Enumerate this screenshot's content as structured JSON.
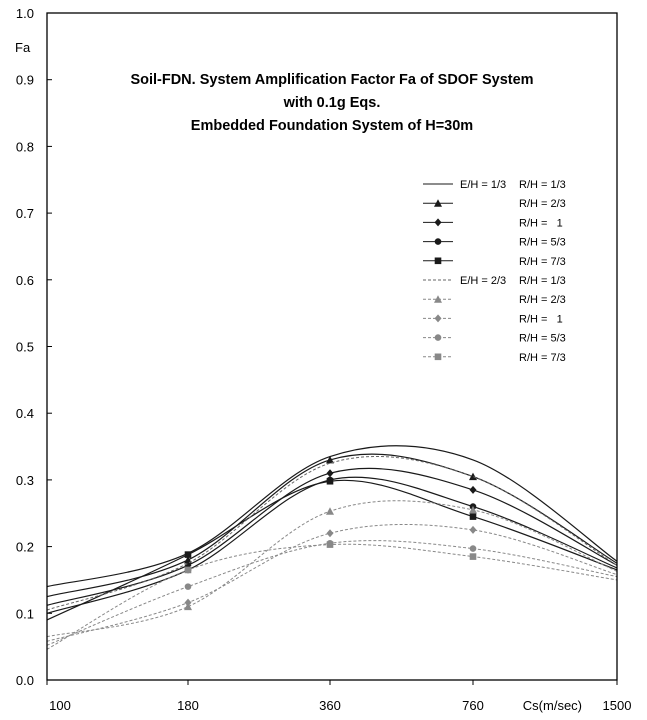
{
  "chart_data": {
    "type": "line",
    "title": [
      "Soil-FDN. System Amplification Factor Fa of SDOF System",
      "with 0.1g Eqs.",
      "Embedded Foundation System of H=30m"
    ],
    "xlabel": "Cs(m/sec)",
    "ylabel": "Fa",
    "categories": [
      "100",
      "180",
      "360",
      "760",
      "1500"
    ],
    "ylim": [
      0,
      1.0
    ],
    "yticks": [
      "0.0",
      "0.1",
      "0.2",
      "0.3",
      "0.4",
      "0.5",
      "0.6",
      "0.7",
      "0.8",
      "0.9",
      "1.0"
    ],
    "grid": false,
    "legend_position": "right",
    "series": [
      {
        "name": "E/H = 1/3  R/H = 1/3",
        "group": "E/H = 1/3",
        "sub": "R/H = 1/3",
        "color": "#1a1a1a",
        "dashed": false,
        "marker": "none",
        "values": [
          0.14,
          0.19,
          0.335,
          0.33,
          0.178
        ]
      },
      {
        "name": "R/H = 2/3",
        "group": "",
        "sub": "R/H = 2/3",
        "color": "#1a1a1a",
        "dashed": false,
        "marker": "triangle",
        "values": [
          0.125,
          0.18,
          0.33,
          0.305,
          0.175
        ]
      },
      {
        "name": "R/H =   1",
        "group": "",
        "sub": "R/H =   1",
        "color": "#1a1a1a",
        "dashed": false,
        "marker": "diamond",
        "values": [
          0.112,
          0.172,
          0.31,
          0.285,
          0.172
        ]
      },
      {
        "name": "R/H = 5/3",
        "group": "",
        "sub": "R/H = 5/3",
        "color": "#1a1a1a",
        "dashed": false,
        "marker": "circle",
        "values": [
          0.1,
          0.165,
          0.3,
          0.26,
          0.168
        ]
      },
      {
        "name": "R/H = 7/3",
        "group": "",
        "sub": "R/H = 7/3",
        "color": "#1a1a1a",
        "dashed": false,
        "marker": "square",
        "values": [
          0.09,
          0.188,
          0.298,
          0.245,
          0.165
        ]
      },
      {
        "name": "E/H = 2/3  R/H = 1/3",
        "group": "E/H = 2/3",
        "sub": "R/H = 1/3",
        "color": "#666666",
        "dashed": true,
        "marker": "none",
        "values": [
          0.105,
          0.175,
          0.325,
          0.305,
          0.172
        ]
      },
      {
        "name": "R/H = 2/3",
        "group": "",
        "sub": "R/H = 2/3",
        "color": "#888888",
        "dashed": true,
        "marker": "triangle",
        "values": [
          0.065,
          0.11,
          0.253,
          0.255,
          0.163
        ]
      },
      {
        "name": "R/H =   1",
        "group": "",
        "sub": "R/H =   1",
        "color": "#888888",
        "dashed": true,
        "marker": "diamond",
        "values": [
          0.058,
          0.116,
          0.22,
          0.225,
          0.158
        ]
      },
      {
        "name": "R/H = 5/3",
        "group": "",
        "sub": "R/H = 5/3",
        "color": "#888888",
        "dashed": true,
        "marker": "circle",
        "values": [
          0.052,
          0.14,
          0.205,
          0.197,
          0.155
        ]
      },
      {
        "name": "R/H = 7/3",
        "group": "",
        "sub": "R/H = 7/3",
        "color": "#888888",
        "dashed": true,
        "marker": "square",
        "values": [
          0.046,
          0.165,
          0.203,
          0.185,
          0.15
        ]
      }
    ]
  }
}
